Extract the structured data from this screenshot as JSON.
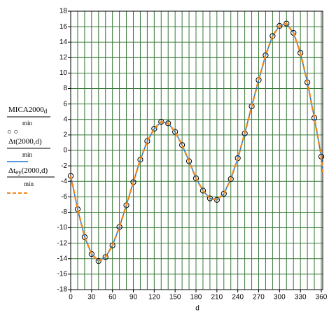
{
  "chart_data": {
    "type": "line_scatter",
    "x_label": "d",
    "xlim": [
      0,
      362
    ],
    "ylim": [
      -18,
      18
    ],
    "xticks": [
      0,
      30,
      60,
      90,
      120,
      150,
      180,
      210,
      240,
      270,
      300,
      330,
      360
    ],
    "xgrid": [
      0,
      10,
      20,
      30,
      40,
      50,
      60,
      70,
      80,
      90,
      100,
      110,
      120,
      130,
      140,
      150,
      160,
      170,
      180,
      190,
      200,
      210,
      220,
      230,
      240,
      250,
      260,
      270,
      280,
      290,
      300,
      310,
      320,
      330,
      340,
      350,
      360
    ],
    "yticks": [
      -18,
      -16,
      -14,
      -12,
      -10,
      -8,
      -6,
      -4,
      -2,
      0,
      2,
      4,
      6,
      8,
      10,
      12,
      14,
      16,
      18
    ],
    "grid": true,
    "series": [
      {
        "name": "MICA2000",
        "name_sub": "d",
        "unit": "min",
        "marker": "○ ○",
        "style": "circles",
        "color": "#000000",
        "x": [
          0,
          10,
          20,
          30,
          40,
          50,
          60,
          70,
          80,
          90,
          100,
          110,
          120,
          130,
          140,
          150,
          160,
          170,
          180,
          190,
          200,
          210,
          220,
          230,
          240,
          250,
          260,
          270,
          280,
          290,
          300,
          310,
          320,
          330,
          340,
          350,
          360
        ],
        "values": [
          -3.3,
          -7.6,
          -11.2,
          -13.4,
          -14.3,
          -13.8,
          -12.3,
          -9.9,
          -7.1,
          -4.1,
          -1.2,
          1.2,
          2.8,
          3.7,
          3.5,
          2.4,
          0.7,
          -1.4,
          -3.6,
          -5.2,
          -6.2,
          -6.4,
          -5.6,
          -3.7,
          -1.0,
          2.2,
          5.7,
          9.1,
          12.3,
          14.8,
          16.1,
          16.4,
          15.2,
          12.6,
          8.8,
          4.2,
          -0.8
        ]
      },
      {
        "name": "Δt(2000,d)",
        "unit": "min",
        "style": "solid",
        "color": "#1f77d4",
        "x": [
          0,
          10,
          20,
          30,
          40,
          50,
          60,
          70,
          80,
          90,
          100,
          110,
          120,
          130,
          140,
          150,
          160,
          170,
          180,
          190,
          200,
          210,
          220,
          230,
          240,
          250,
          260,
          270,
          280,
          290,
          300,
          310,
          320,
          330,
          340,
          350,
          360,
          362
        ],
        "values": [
          -3.3,
          -7.6,
          -11.2,
          -13.4,
          -14.3,
          -13.8,
          -12.3,
          -9.9,
          -7.1,
          -4.1,
          -1.2,
          1.2,
          2.8,
          3.7,
          3.5,
          2.4,
          0.7,
          -1.4,
          -3.6,
          -5.2,
          -6.2,
          -6.4,
          -5.6,
          -3.7,
          -1.0,
          2.2,
          5.7,
          9.1,
          12.3,
          14.8,
          16.1,
          16.4,
          15.2,
          12.6,
          8.8,
          4.2,
          -0.8,
          -2.8
        ]
      },
      {
        "name": "Δt",
        "name_sub": "ey",
        "name_rest": "(2000,d)",
        "unit": "min",
        "style": "dashed",
        "color": "#f28a1e",
        "x": [
          0,
          10,
          20,
          30,
          40,
          50,
          60,
          70,
          80,
          90,
          100,
          110,
          120,
          130,
          140,
          150,
          160,
          170,
          180,
          190,
          200,
          210,
          220,
          230,
          240,
          250,
          260,
          270,
          280,
          290,
          300,
          310,
          320,
          330,
          340,
          350,
          360,
          362
        ],
        "values": [
          -3.3,
          -7.6,
          -11.2,
          -13.4,
          -14.3,
          -13.8,
          -12.3,
          -9.9,
          -7.1,
          -4.1,
          -1.2,
          1.2,
          2.8,
          3.7,
          3.5,
          2.4,
          0.7,
          -1.4,
          -3.6,
          -5.2,
          -6.2,
          -6.4,
          -5.6,
          -3.7,
          -1.0,
          2.2,
          5.7,
          9.1,
          12.3,
          14.8,
          16.1,
          16.4,
          15.2,
          12.6,
          8.8,
          4.2,
          -0.8,
          -2.8
        ]
      }
    ]
  }
}
